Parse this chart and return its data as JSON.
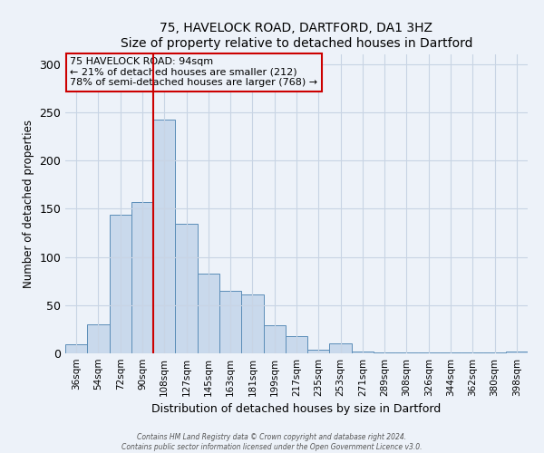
{
  "title": "75, HAVELOCK ROAD, DARTFORD, DA1 3HZ",
  "subtitle": "Size of property relative to detached houses in Dartford",
  "xlabel": "Distribution of detached houses by size in Dartford",
  "ylabel": "Number of detached properties",
  "bar_labels": [
    "36sqm",
    "54sqm",
    "72sqm",
    "90sqm",
    "108sqm",
    "127sqm",
    "145sqm",
    "163sqm",
    "181sqm",
    "199sqm",
    "217sqm",
    "235sqm",
    "253sqm",
    "271sqm",
    "289sqm",
    "308sqm",
    "326sqm",
    "344sqm",
    "362sqm",
    "380sqm",
    "398sqm"
  ],
  "bar_values": [
    9,
    30,
    144,
    157,
    242,
    134,
    83,
    65,
    61,
    29,
    18,
    4,
    10,
    2,
    1,
    1,
    1,
    1,
    1,
    1,
    2
  ],
  "bar_color": "#c9d9ec",
  "bar_edge_color": "#5b8db8",
  "vline_x": 3.5,
  "vline_color": "#cc0000",
  "annotation_title": "75 HAVELOCK ROAD: 94sqm",
  "annotation_line1": "← 21% of detached houses are smaller (212)",
  "annotation_line2": "78% of semi-detached houses are larger (768) →",
  "annotation_box_edge": "#cc0000",
  "ylim": [
    0,
    310
  ],
  "yticks": [
    0,
    50,
    100,
    150,
    200,
    250,
    300
  ],
  "footer1": "Contains HM Land Registry data © Crown copyright and database right 2024.",
  "footer2": "Contains public sector information licensed under the Open Government Licence v3.0.",
  "bg_color": "#edf2f9",
  "grid_color": "#c8d4e4"
}
